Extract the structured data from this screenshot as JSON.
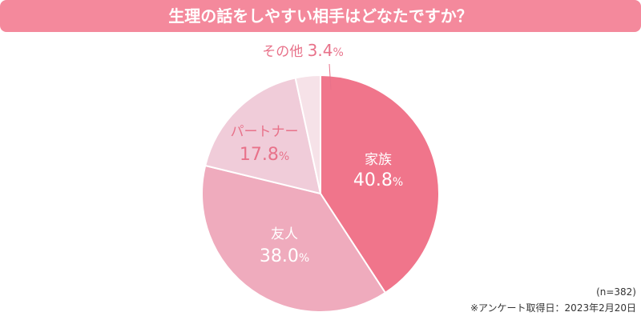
{
  "chart_data": {
    "type": "pie",
    "title": "生理の話をしやすい相手はどなたですか？",
    "slices": [
      {
        "label": "家族",
        "value": 40.8,
        "value_label": "40.8",
        "color": "#f0758b"
      },
      {
        "label": "友人",
        "value": 38.0,
        "value_label": "38.0",
        "color": "#efabbd"
      },
      {
        "label": "パートナー",
        "value": 17.8,
        "value_label": "17.8",
        "color": "#f0ccd9"
      },
      {
        "label": "その他",
        "value": 3.4,
        "value_label": "3.4",
        "color": "#f6e2e8"
      }
    ],
    "unit": "%",
    "sample": "(n=382)",
    "source": "※アンケート取得日：2023年2月20日"
  }
}
